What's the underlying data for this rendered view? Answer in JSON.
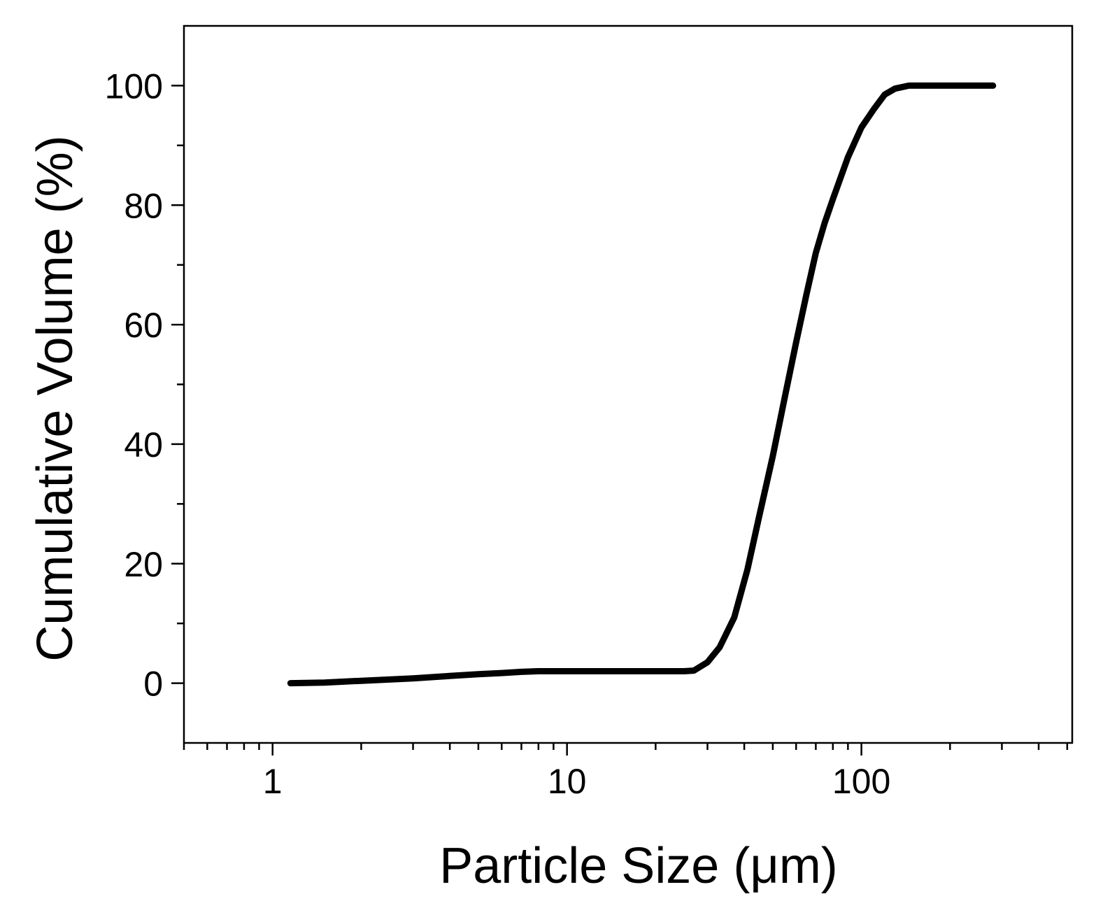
{
  "chart_data": {
    "type": "line",
    "title": "",
    "xlabel": "Particle Size (μm)",
    "ylabel": "Cumulative Volume (%)",
    "x_scale": "log",
    "xlim": [
      0.5,
      520
    ],
    "ylim": [
      -10,
      110
    ],
    "x_ticks": [
      {
        "value": 1,
        "label": "1"
      },
      {
        "value": 10,
        "label": "10"
      },
      {
        "value": 100,
        "label": "100"
      }
    ],
    "y_ticks": [
      {
        "value": 0,
        "label": "0"
      },
      {
        "value": 20,
        "label": "20"
      },
      {
        "value": 40,
        "label": "40"
      },
      {
        "value": 60,
        "label": "60"
      },
      {
        "value": 80,
        "label": "80"
      },
      {
        "value": 100,
        "label": "100"
      }
    ],
    "grid": false,
    "legend": "none",
    "line_color": "#000000",
    "series": [
      {
        "x": [
          1.15,
          1.5,
          2,
          3,
          4,
          5,
          6,
          7,
          8,
          10,
          15,
          20,
          25,
          27,
          30,
          33,
          37,
          41,
          45,
          50,
          55,
          60,
          65,
          70,
          75,
          80,
          90,
          100,
          110,
          120,
          130,
          145,
          200,
          280
        ],
        "y": [
          0,
          0.1,
          0.4,
          0.8,
          1.2,
          1.5,
          1.7,
          1.9,
          2.0,
          2.0,
          2.0,
          2.0,
          2.0,
          2.1,
          3.5,
          6,
          11,
          19,
          28,
          38,
          48,
          57,
          65,
          72,
          77,
          81,
          88,
          93,
          96,
          98.5,
          99.5,
          100,
          100,
          100
        ]
      }
    ]
  }
}
